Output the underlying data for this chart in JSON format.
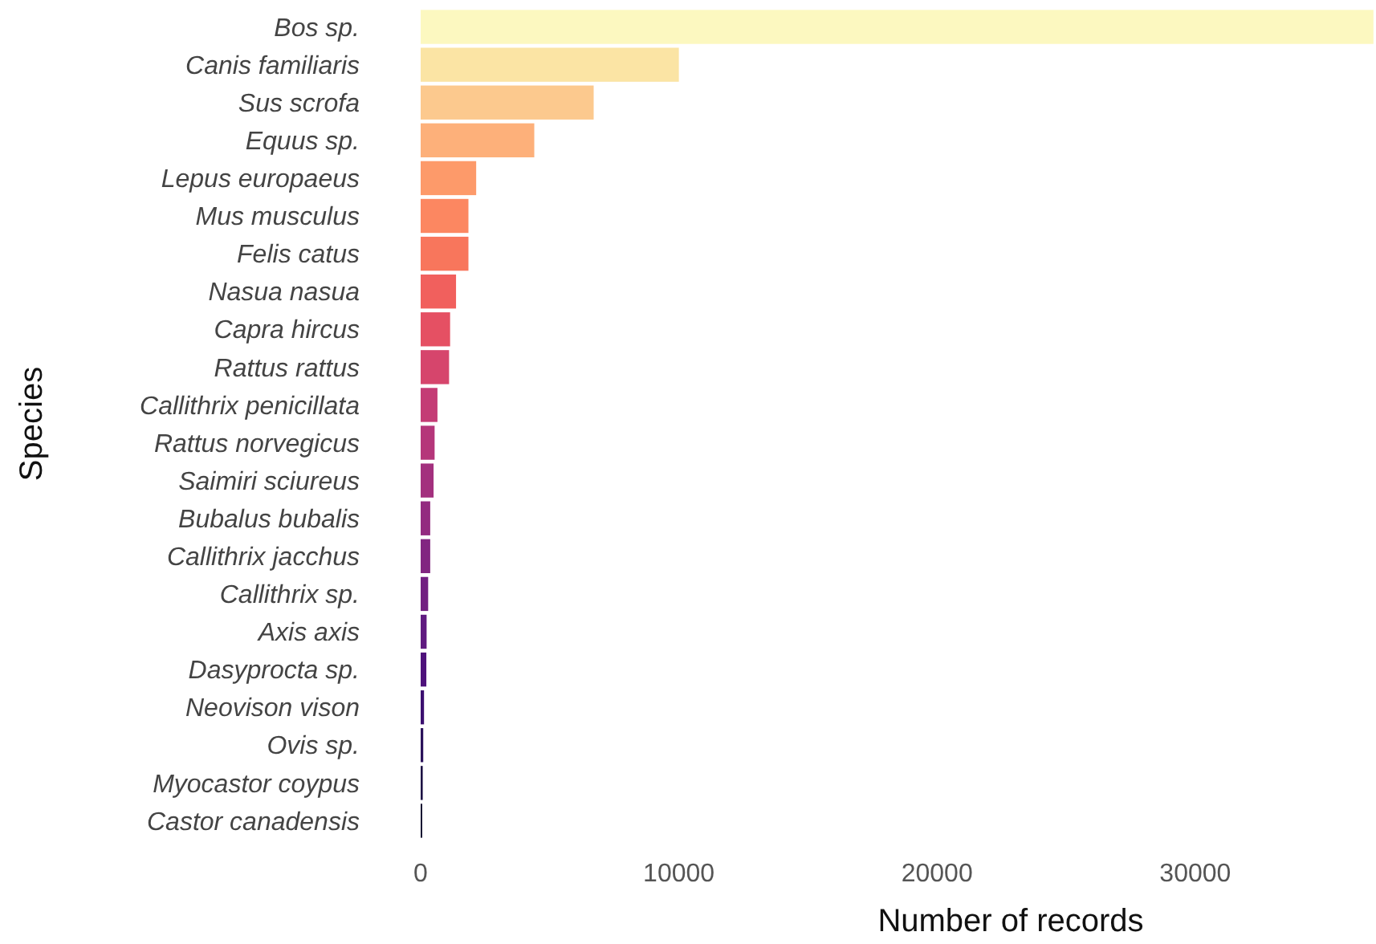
{
  "chart_data": {
    "type": "bar",
    "orientation": "horizontal",
    "xlabel": "Number of records",
    "ylabel": "Species",
    "categories": [
      "Bos sp.",
      "Canis familiaris",
      "Sus scrofa",
      "Equus sp.",
      "Lepus europaeus",
      "Mus musculus",
      "Felis catus",
      "Nasua nasua",
      "Capra hircus",
      "Rattus rattus",
      "Callithrix penicillata",
      "Rattus norvegicus",
      "Saimiri sciureus",
      "Bubalus bubalis",
      "Callithrix jacchus",
      "Callithrix sp.",
      "Axis axis",
      "Dasyprocta sp.",
      "Neovison vison",
      "Ovis sp.",
      "Myocastor coypus",
      "Castor canadensis"
    ],
    "values": [
      36900,
      10000,
      6700,
      4400,
      2150,
      1850,
      1850,
      1370,
      1140,
      1100,
      650,
      540,
      500,
      370,
      370,
      290,
      230,
      220,
      130,
      100,
      80,
      60
    ],
    "colors": [
      "#fcf8c0",
      "#fbe4a4",
      "#fcc98e",
      "#fdb07a",
      "#fd9a6a",
      "#fc8761",
      "#f8765c",
      "#f1605d",
      "#e55063",
      "#d6456c",
      "#c43c75",
      "#b5367a",
      "#a3307e",
      "#932b80",
      "#822681",
      "#721f81",
      "#601a80",
      "#4e117b",
      "#3b0f70",
      "#2a115a",
      "#1c1044",
      "#0f0b2b"
    ],
    "xlim": [
      0,
      37000
    ],
    "xticks": [
      0,
      10000,
      20000,
      30000
    ]
  }
}
